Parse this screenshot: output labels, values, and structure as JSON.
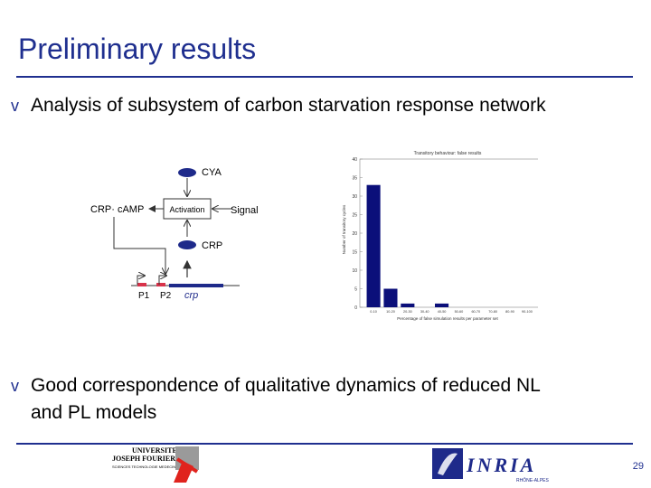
{
  "slide": {
    "title": "Preliminary results",
    "bullet1": "Analysis of subsystem of carbon starvation response network",
    "bullet2_line1": "Good correspondence of qualitative dynamics of reduced NL",
    "bullet2_line2": "and PL models",
    "bullet_glyph": "v",
    "page_number": "29"
  },
  "diagram": {
    "cya": "CYA",
    "crp_camp": "CRP· cAMP",
    "activation": "Activation",
    "signal": "Signal",
    "crp": "CRP",
    "p1": "P1",
    "p2": "P2",
    "gene": "crp"
  },
  "chart_data": {
    "type": "bar",
    "title": "Transitory behaviour: false results",
    "ylabel": "Number of transitory cycles",
    "xlabel": "Percentage of false simulation results per parameter set",
    "categories": [
      "0-10",
      "10-20",
      "20-30",
      "30-40",
      "40-50",
      "50-60",
      "60-70",
      "70-80",
      "80-90",
      "90-100"
    ],
    "values": [
      33,
      5,
      1,
      0,
      1,
      0,
      0,
      0,
      0,
      0
    ],
    "ylim": [
      0,
      40
    ],
    "yticks": [
      "0",
      "5",
      "10",
      "15",
      "20",
      "25",
      "30",
      "35",
      "40"
    ],
    "bar_color": "#0b0f7a"
  },
  "logos": {
    "ujf_line1": "UNIVERSITE",
    "ujf_line2": "JOSEPH FOURIER",
    "ujf_line3": "SCIENCES TECHNOLOGIE MEDECINE",
    "inria": "INRIA",
    "inria_sub": "RHÔNE-ALPES"
  }
}
